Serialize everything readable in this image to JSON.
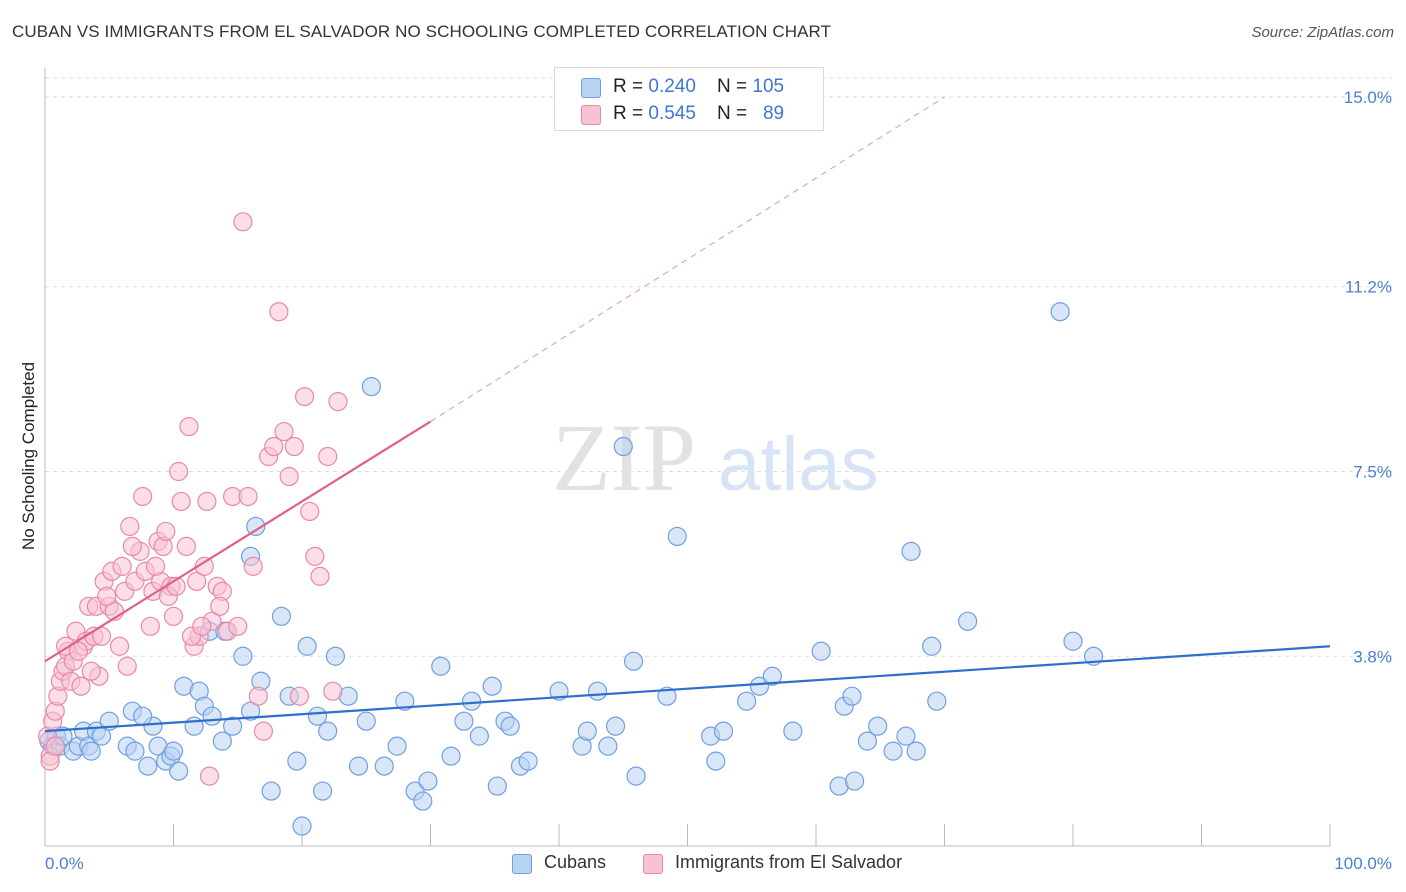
{
  "title": "CUBAN VS IMMIGRANTS FROM EL SALVADOR NO SCHOOLING COMPLETED CORRELATION CHART",
  "source": "Source: ZipAtlas.com",
  "watermark": {
    "zip": "ZIP",
    "atlas": "atlas"
  },
  "legend": {
    "r_label": "R = ",
    "n_label": "N = ",
    "rows": [
      {
        "r": "0.240",
        "n": "105",
        "fill": "#b8d2f2",
        "stroke": "#6f9fe0"
      },
      {
        "r": "0.545",
        "n": "89",
        "fill": "#f7c3d3",
        "stroke": "#e889a8"
      }
    ]
  },
  "bottom_legend": [
    {
      "label": "Cubans",
      "fill": "#b8d2f2",
      "stroke": "#6f9fe0"
    },
    {
      "label": "Immigrants from El Salvador",
      "fill": "#f7c3d3",
      "stroke": "#e889a8"
    }
  ],
  "chart_data": {
    "type": "scatter",
    "title": "CUBAN VS IMMIGRANTS FROM EL SALVADOR NO SCHOOLING COMPLETED CORRELATION CHART",
    "ylabel": "No Schooling Completed",
    "xlabel": "",
    "xlim": [
      0,
      100
    ],
    "ylim": [
      0,
      15.0
    ],
    "x_tick_labels": [
      "0.0%",
      "100.0%"
    ],
    "y_ticks": [
      3.8,
      7.5,
      11.2,
      15.0
    ],
    "y_tick_labels": [
      "3.8%",
      "7.5%",
      "11.2%",
      "15.0%"
    ],
    "grid": "horizontal dashed",
    "legend_position": "top-center",
    "series": [
      {
        "name": "Cubans",
        "color": "#6f9fe0",
        "fill": "#b8d2f2",
        "trend": {
          "x": [
            0,
            100
          ],
          "y": [
            2.3,
            4.0
          ],
          "style": "solid",
          "color": "#2f6fcc"
        },
        "points": [
          [
            0.3,
            2.1
          ],
          [
            0.6,
            2.0
          ],
          [
            0.9,
            2.2
          ],
          [
            1.2,
            2.0
          ],
          [
            1.4,
            2.2
          ],
          [
            2.2,
            1.9
          ],
          [
            2.6,
            2.0
          ],
          [
            3.0,
            2.3
          ],
          [
            3.4,
            2.0
          ],
          [
            4.0,
            2.3
          ],
          [
            4.4,
            2.2
          ],
          [
            5.0,
            2.5
          ],
          [
            6.4,
            2.0
          ],
          [
            6.8,
            2.7
          ],
          [
            7.0,
            1.9
          ],
          [
            8.0,
            1.6
          ],
          [
            8.4,
            2.4
          ],
          [
            8.8,
            2.0
          ],
          [
            9.4,
            1.7
          ],
          [
            9.8,
            1.8
          ],
          [
            10.4,
            1.5
          ],
          [
            10.8,
            3.2
          ],
          [
            11.6,
            2.4
          ],
          [
            12.0,
            3.1
          ],
          [
            12.4,
            2.8
          ],
          [
            13.0,
            2.6
          ],
          [
            13.8,
            2.1
          ],
          [
            14.6,
            2.4
          ],
          [
            16.0,
            2.7
          ],
          [
            16.8,
            3.3
          ],
          [
            17.6,
            1.1
          ],
          [
            18.4,
            4.6
          ],
          [
            19.0,
            3.0
          ],
          [
            19.6,
            1.7
          ],
          [
            20.0,
            0.4
          ],
          [
            20.4,
            4.0
          ],
          [
            21.2,
            2.6
          ],
          [
            21.6,
            1.1
          ],
          [
            22.0,
            2.3
          ],
          [
            22.6,
            3.8
          ],
          [
            23.6,
            3.0
          ],
          [
            24.4,
            1.6
          ],
          [
            25.0,
            2.5
          ],
          [
            25.4,
            9.2
          ],
          [
            26.4,
            1.6
          ],
          [
            27.4,
            2.0
          ],
          [
            28.0,
            2.9
          ],
          [
            28.8,
            1.1
          ],
          [
            29.4,
            0.9
          ],
          [
            29.8,
            1.3
          ],
          [
            30.8,
            3.6
          ],
          [
            31.6,
            1.8
          ],
          [
            32.6,
            2.5
          ],
          [
            33.2,
            2.9
          ],
          [
            33.8,
            2.2
          ],
          [
            34.8,
            3.2
          ],
          [
            35.2,
            1.2
          ],
          [
            35.8,
            2.5
          ],
          [
            36.2,
            2.4
          ],
          [
            37.0,
            1.6
          ],
          [
            37.6,
            1.7
          ],
          [
            40.0,
            3.1
          ],
          [
            41.8,
            2.0
          ],
          [
            42.2,
            2.3
          ],
          [
            43.0,
            3.1
          ],
          [
            43.8,
            2.0
          ],
          [
            44.4,
            2.4
          ],
          [
            45.0,
            8.0
          ],
          [
            45.8,
            3.7
          ],
          [
            46.0,
            1.4
          ],
          [
            48.4,
            3.0
          ],
          [
            49.2,
            6.2
          ],
          [
            51.8,
            2.2
          ],
          [
            52.2,
            1.7
          ],
          [
            52.8,
            2.3
          ],
          [
            54.6,
            2.9
          ],
          [
            55.6,
            3.2
          ],
          [
            56.6,
            3.4
          ],
          [
            58.2,
            2.3
          ],
          [
            60.4,
            3.9
          ],
          [
            61.8,
            1.2
          ],
          [
            62.2,
            2.8
          ],
          [
            62.8,
            3.0
          ],
          [
            63.0,
            1.3
          ],
          [
            64.0,
            2.1
          ],
          [
            64.8,
            2.4
          ],
          [
            66.0,
            1.9
          ],
          [
            67.0,
            2.2
          ],
          [
            67.4,
            5.9
          ],
          [
            67.8,
            1.9
          ],
          [
            69.0,
            4.0
          ],
          [
            69.4,
            2.9
          ],
          [
            71.8,
            4.5
          ],
          [
            79.0,
            10.7
          ],
          [
            80.0,
            4.1
          ],
          [
            81.6,
            3.8
          ],
          [
            12.8,
            4.3
          ],
          [
            16.0,
            5.8
          ],
          [
            16.4,
            6.4
          ],
          [
            14.0,
            4.3
          ],
          [
            15.4,
            3.8
          ],
          [
            10.0,
            1.9
          ],
          [
            7.6,
            2.6
          ],
          [
            3.6,
            1.9
          ]
        ]
      },
      {
        "name": "Immigrants from El Salvador",
        "color": "#e889a8",
        "fill": "#f7c3d3",
        "trend": {
          "x": [
            0,
            30
          ],
          "y": [
            3.7,
            8.5
          ],
          "style": "solid",
          "color": "#e0608b",
          "dashed_extension": {
            "x": [
              30,
              70
            ],
            "y": [
              8.5,
              15.0
            ]
          }
        },
        "points": [
          [
            0.2,
            2.2
          ],
          [
            0.4,
            1.8
          ],
          [
            0.6,
            2.5
          ],
          [
            0.8,
            2.7
          ],
          [
            1.0,
            3.0
          ],
          [
            1.2,
            3.3
          ],
          [
            1.4,
            3.5
          ],
          [
            1.6,
            3.6
          ],
          [
            1.8,
            3.9
          ],
          [
            2.0,
            3.3
          ],
          [
            2.2,
            3.7
          ],
          [
            2.4,
            4.3
          ],
          [
            2.8,
            3.2
          ],
          [
            3.0,
            4.0
          ],
          [
            3.2,
            4.1
          ],
          [
            3.4,
            4.8
          ],
          [
            3.8,
            4.2
          ],
          [
            4.0,
            4.8
          ],
          [
            4.2,
            3.4
          ],
          [
            4.4,
            4.2
          ],
          [
            4.6,
            5.3
          ],
          [
            5.0,
            4.8
          ],
          [
            5.2,
            5.5
          ],
          [
            5.4,
            4.7
          ],
          [
            5.8,
            4.0
          ],
          [
            6.0,
            5.6
          ],
          [
            6.2,
            5.1
          ],
          [
            6.4,
            3.6
          ],
          [
            6.6,
            6.4
          ],
          [
            7.0,
            5.3
          ],
          [
            7.4,
            5.9
          ],
          [
            7.6,
            7.0
          ],
          [
            7.8,
            5.5
          ],
          [
            8.2,
            4.4
          ],
          [
            8.4,
            5.1
          ],
          [
            8.8,
            6.1
          ],
          [
            9.0,
            5.3
          ],
          [
            9.2,
            6.0
          ],
          [
            9.4,
            6.3
          ],
          [
            9.8,
            5.2
          ],
          [
            10.0,
            4.6
          ],
          [
            10.4,
            7.5
          ],
          [
            10.6,
            6.9
          ],
          [
            11.0,
            6.0
          ],
          [
            11.2,
            8.4
          ],
          [
            11.6,
            4.0
          ],
          [
            11.8,
            5.3
          ],
          [
            12.0,
            4.2
          ],
          [
            12.4,
            5.6
          ],
          [
            12.6,
            6.9
          ],
          [
            12.8,
            1.4
          ],
          [
            13.0,
            4.5
          ],
          [
            13.4,
            5.2
          ],
          [
            13.8,
            5.1
          ],
          [
            14.2,
            4.3
          ],
          [
            14.6,
            7.0
          ],
          [
            15.0,
            4.4
          ],
          [
            15.4,
            12.5
          ],
          [
            15.8,
            7.0
          ],
          [
            16.2,
            5.6
          ],
          [
            16.6,
            3.0
          ],
          [
            17.0,
            2.3
          ],
          [
            17.4,
            7.8
          ],
          [
            17.8,
            8.0
          ],
          [
            18.2,
            10.7
          ],
          [
            18.6,
            8.3
          ],
          [
            19.0,
            7.4
          ],
          [
            19.4,
            8.0
          ],
          [
            19.8,
            3.0
          ],
          [
            20.2,
            9.0
          ],
          [
            20.6,
            6.7
          ],
          [
            21.0,
            5.8
          ],
          [
            21.4,
            5.4
          ],
          [
            22.0,
            7.8
          ],
          [
            22.4,
            3.1
          ],
          [
            22.8,
            8.9
          ],
          [
            0.4,
            1.7
          ],
          [
            0.8,
            2.0
          ],
          [
            1.6,
            4.0
          ],
          [
            2.6,
            3.9
          ],
          [
            3.6,
            3.5
          ],
          [
            4.8,
            5.0
          ],
          [
            6.8,
            6.0
          ],
          [
            8.6,
            5.6
          ],
          [
            9.6,
            5.0
          ],
          [
            10.2,
            5.2
          ],
          [
            11.4,
            4.2
          ],
          [
            12.2,
            4.4
          ],
          [
            13.6,
            4.8
          ]
        ]
      }
    ]
  }
}
